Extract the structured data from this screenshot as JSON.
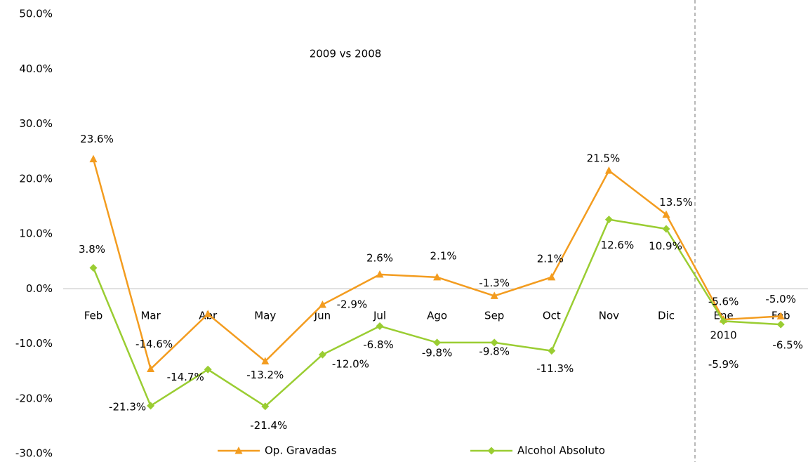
{
  "chart_data": {
    "type": "line",
    "title": "2009 vs 2008",
    "categories": [
      "Feb",
      "Mar",
      "Abr",
      "May",
      "Jun",
      "Jul",
      "Ago",
      "Sep",
      "Oct",
      "Nov",
      "Dic",
      "Ene",
      "Feb"
    ],
    "year_annotation": "2010",
    "series": [
      {
        "name": "Op. Gravadas",
        "color": "#f39c1f",
        "marker": "triangle",
        "values": [
          23.6,
          -14.6,
          -4.6,
          -13.2,
          -2.9,
          2.6,
          2.1,
          -1.3,
          2.1,
          21.5,
          13.5,
          -5.6,
          -5.0
        ],
        "value_labels": [
          "23.6%",
          "-14.6%",
          null,
          "-13.2%",
          "-2.9%",
          "2.6%",
          "2.1%",
          "-1.3%",
          "2.1%",
          "21.5%",
          "13.5%",
          "-5.6%",
          "-5.0%"
        ]
      },
      {
        "name": "Alcohol Absoluto",
        "color": "#9acd32",
        "marker": "diamond",
        "values": [
          3.8,
          -21.3,
          -14.7,
          -21.4,
          -12.0,
          -6.8,
          -9.8,
          -9.8,
          -11.3,
          12.6,
          10.9,
          -5.9,
          -6.5
        ],
        "value_labels": [
          "3.8%",
          "-21.3%",
          "-14.7%",
          "-21.4%",
          "-12.0%",
          "-6.8%",
          "-9.8%",
          "-9.8%",
          "-11.3%",
          "12.6%",
          "10.9%",
          "-5.9%",
          "-6.5%"
        ]
      }
    ],
    "ylim": [
      -30,
      50
    ],
    "yticks": [
      {
        "value": -30,
        "label": "-30.0%"
      },
      {
        "value": -20,
        "label": "-20.0%"
      },
      {
        "value": -10,
        "label": "-10.0%"
      },
      {
        "value": 0,
        "label": "0.0%"
      },
      {
        "value": 10,
        "label": "10.0%"
      },
      {
        "value": 20,
        "label": "20.0%"
      },
      {
        "value": 30,
        "label": "30.0%"
      },
      {
        "value": 40,
        "label": "40.0%"
      },
      {
        "value": 50,
        "label": "50.0%"
      }
    ],
    "grid": false,
    "legend": "bottom"
  }
}
